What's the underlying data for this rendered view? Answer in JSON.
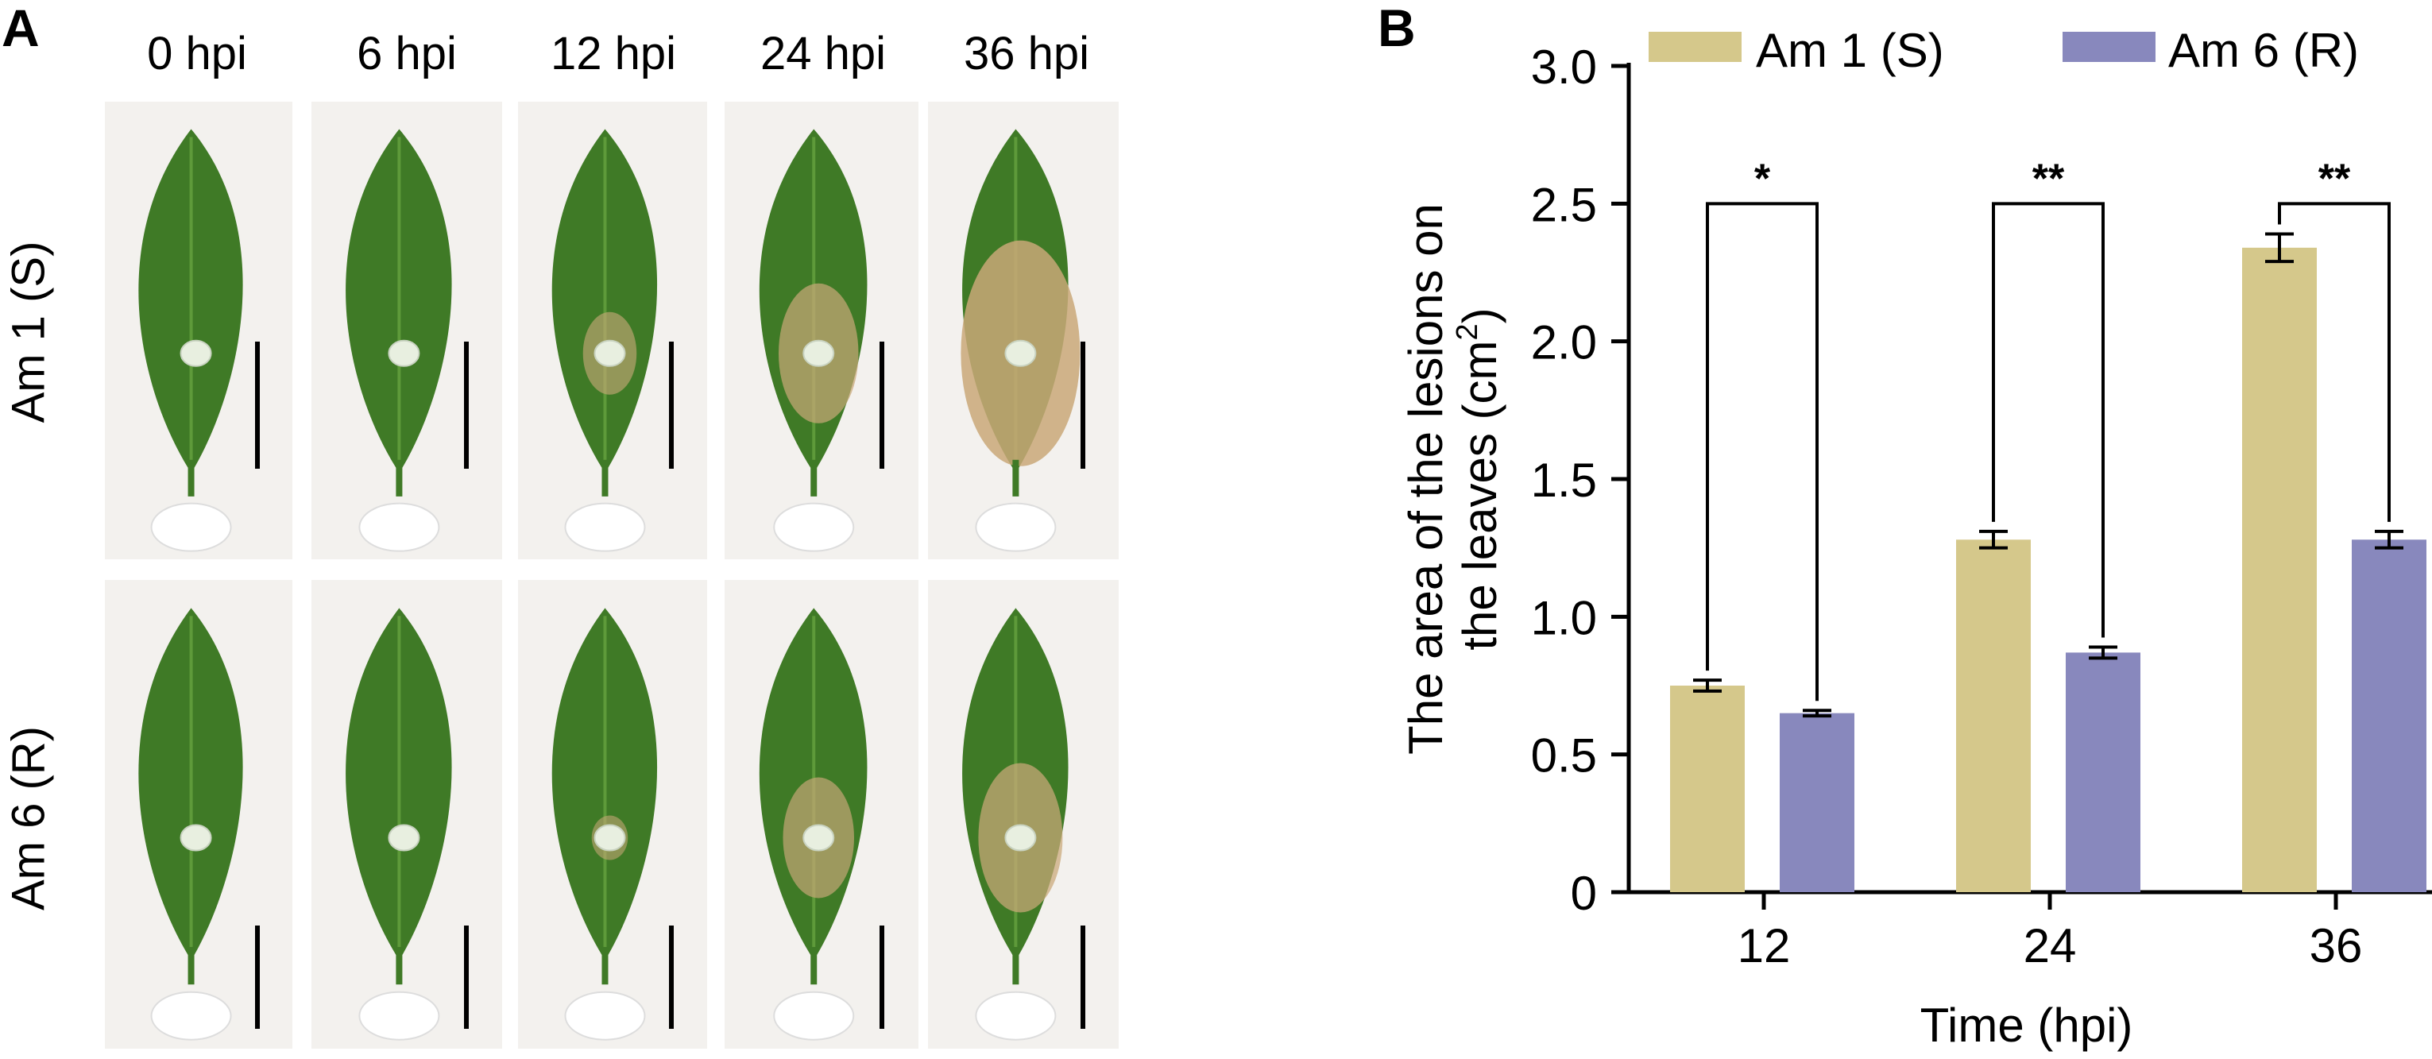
{
  "panel_a": {
    "letter": "A",
    "columns": [
      "0 hpi",
      "6 hpi",
      "12 hpi",
      "24 hpi",
      "36 hpi"
    ],
    "rows": [
      {
        "label": "Am 1 (S)",
        "lesion_level": [
          0,
          0,
          0.25,
          0.55,
          1.0
        ]
      },
      {
        "label": "Am 6 (R)",
        "lesion_level": [
          0,
          0,
          0.05,
          0.45,
          0.6
        ]
      }
    ],
    "colors": {
      "leaf": "#3f7a26",
      "leaf_light": "#5e9a3a",
      "lesion": "#c9a878",
      "droplet": "#e8efe0",
      "background": "#f3f1ee"
    }
  },
  "panel_b": {
    "letter": "B",
    "chart_data": {
      "type": "bar",
      "categories": [
        "12",
        "24",
        "36"
      ],
      "series": [
        {
          "name": "Am 1 (S)",
          "color": "#d5c88b",
          "values": [
            0.75,
            1.28,
            2.34
          ],
          "errors": [
            0.02,
            0.03,
            0.05
          ]
        },
        {
          "name": "Am 6 (R)",
          "color": "#8888bd",
          "values": [
            0.65,
            0.87,
            1.28
          ],
          "errors": [
            0.01,
            0.02,
            0.03
          ]
        }
      ],
      "xlabel": "Time (hpi)",
      "ylabel_line1": "The area of the lesions on",
      "ylabel_line2": "the leaves (cm",
      "ylabel_sup": "2",
      "ylabel_close": ")",
      "ylim": [
        0,
        3.0
      ],
      "yticks": [
        "0",
        "0.5",
        "1.0",
        "1.5",
        "2.0",
        "2.5",
        "3.0"
      ],
      "significance": [
        "*",
        "**",
        "**"
      ],
      "legend_position": "top"
    }
  }
}
